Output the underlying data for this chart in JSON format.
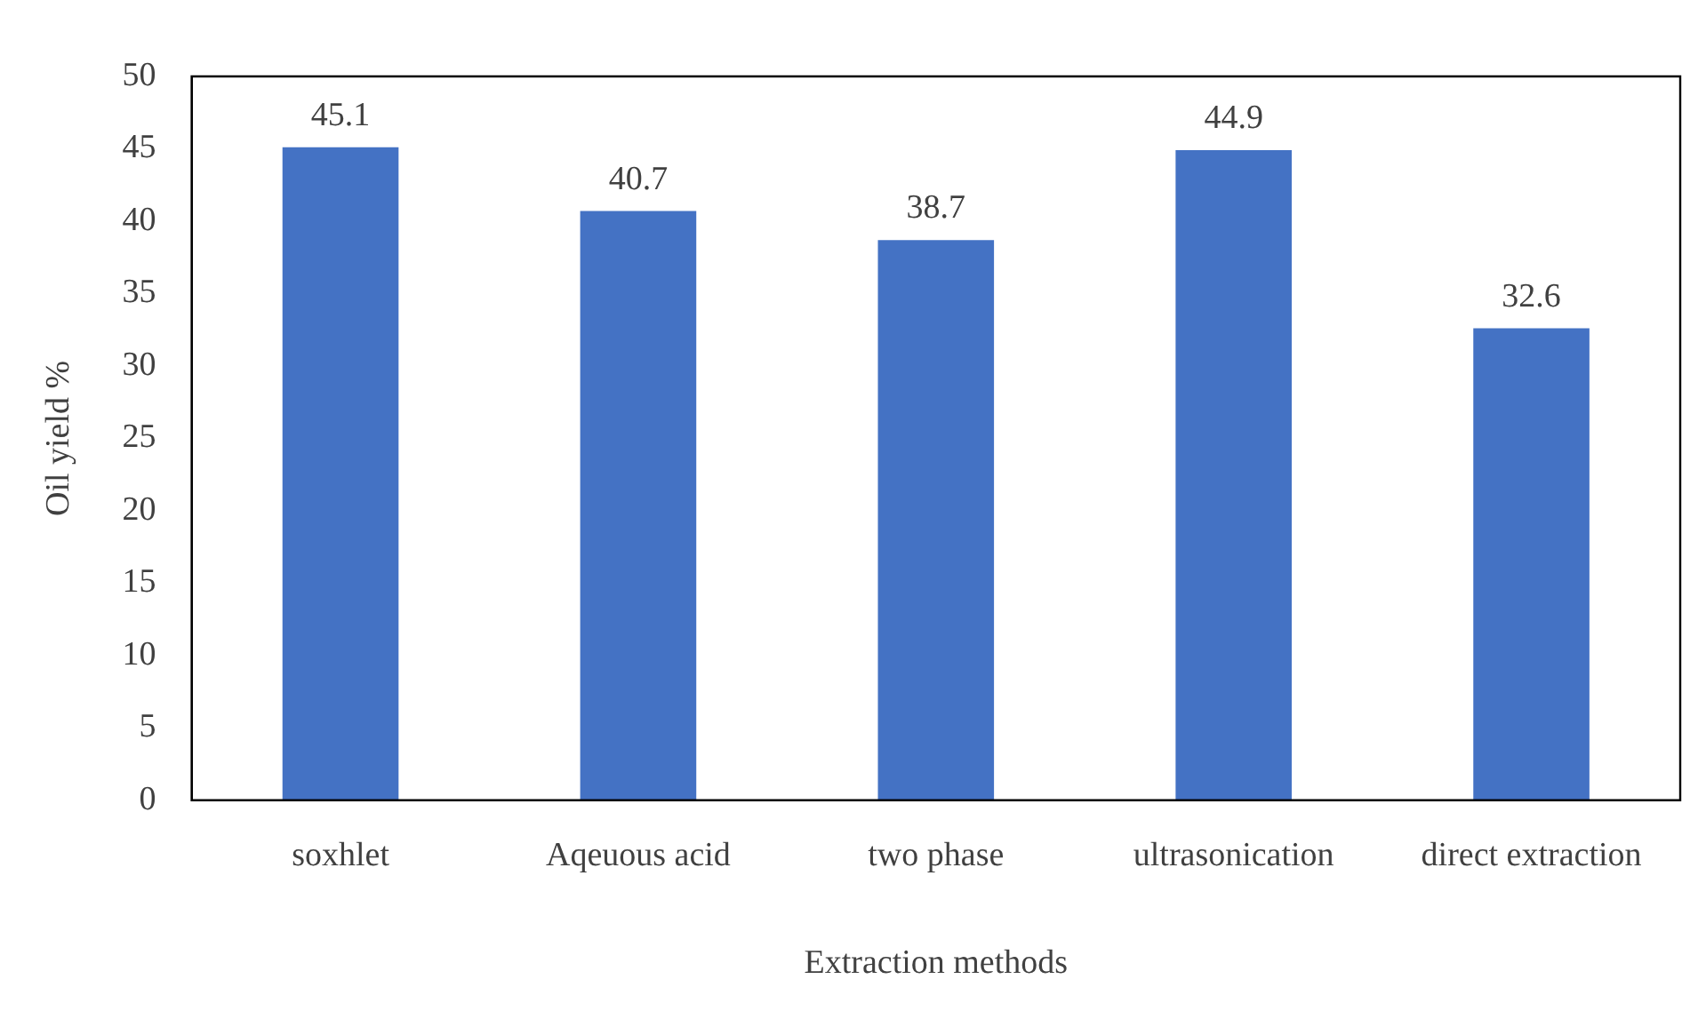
{
  "chart_data": {
    "type": "bar",
    "xlabel": "Extraction methods",
    "ylabel": "Oil yield %",
    "categories": [
      "soxhlet",
      "Aqeuous acid",
      "two phase",
      "ultrasonication",
      "direct extraction"
    ],
    "values": [
      45.1,
      40.7,
      38.7,
      44.9,
      32.6
    ],
    "color": "#4472c4",
    "ylim": [
      0,
      50
    ],
    "yticks": [
      0,
      5,
      10,
      15,
      20,
      25,
      30,
      35,
      40,
      45,
      50
    ],
    "grid": false,
    "legend": false,
    "data_labels": true
  }
}
